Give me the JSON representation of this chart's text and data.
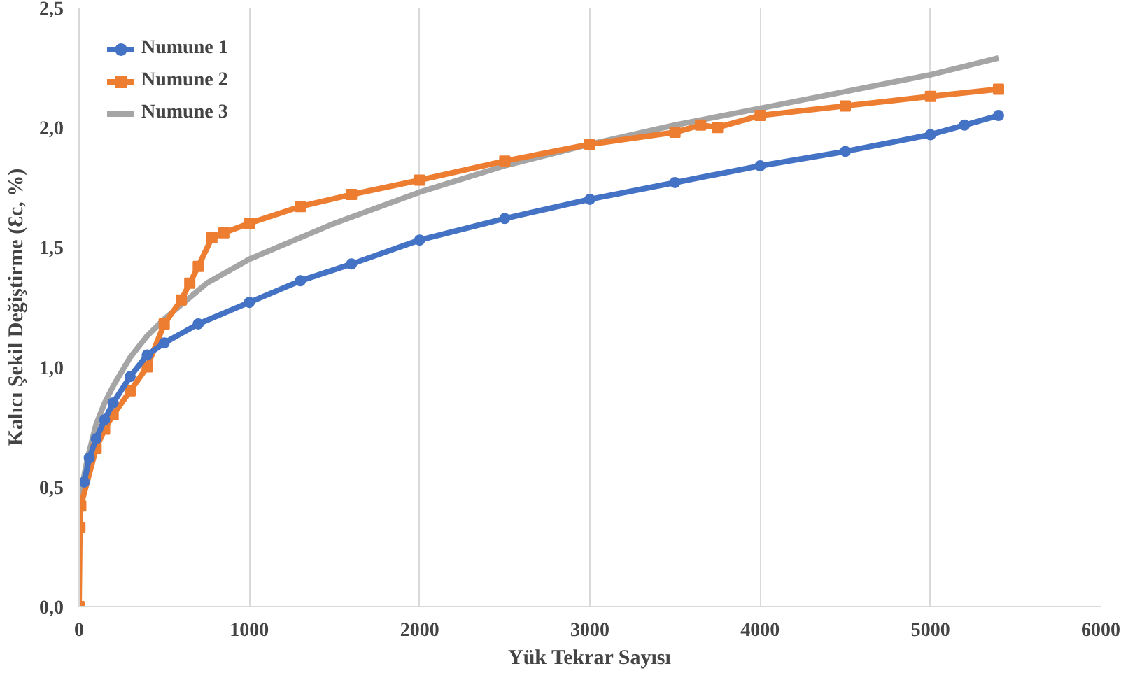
{
  "chart_data": {
    "type": "line",
    "xlabel": "Yük Tekrar Sayısı",
    "ylabel": "Kalıcı Şekil Değiştirme (Ɛc, %)",
    "xlim": [
      0,
      6000
    ],
    "xticks": [
      0,
      1000,
      2000,
      3000,
      4000,
      5000,
      6000
    ],
    "ylim": [
      0,
      2.5
    ],
    "yticks": [
      {
        "value": 0,
        "label": "0,0"
      },
      {
        "value": 0.5,
        "label": "0,5"
      },
      {
        "value": 1,
        "label": "1,0"
      },
      {
        "value": 1.5,
        "label": "1,5"
      },
      {
        "value": 2,
        "label": "2,0"
      },
      {
        "value": 2.5,
        "label": "2,5"
      }
    ],
    "grid": "x",
    "legend": "top left",
    "series": [
      {
        "name": "Numune 1",
        "color": "#4472c4",
        "type": "line",
        "marker": "circle",
        "x": [
          30,
          60,
          100,
          150,
          200,
          300,
          400,
          500,
          700,
          1000,
          1300,
          1600,
          2000,
          2500,
          3000,
          3500,
          4000,
          4500,
          5000,
          5200,
          5400
        ],
        "values": [
          0.52,
          0.62,
          0.7,
          0.78,
          0.85,
          0.96,
          1.05,
          1.1,
          1.18,
          1.27,
          1.36,
          1.43,
          1.53,
          1.62,
          1.7,
          1.77,
          1.84,
          1.9,
          1.97,
          2.01,
          2.05
        ]
      },
      {
        "name": "Numune 2",
        "color": "#ed7d31",
        "type": "line",
        "marker": "square",
        "x": [
          0,
          5,
          10,
          100,
          150,
          200,
          300,
          400,
          500,
          600,
          650,
          700,
          780,
          850,
          1000,
          1300,
          1600,
          2000,
          2500,
          3000,
          3500,
          3650,
          3750,
          4000,
          4500,
          5000,
          5400
        ],
        "values": [
          0,
          0.33,
          0.42,
          0.66,
          0.74,
          0.8,
          0.9,
          1.0,
          1.18,
          1.28,
          1.35,
          1.42,
          1.54,
          1.56,
          1.6,
          1.67,
          1.72,
          1.78,
          1.86,
          1.93,
          1.98,
          2.01,
          2.0,
          2.05,
          2.09,
          2.13,
          2.16
        ]
      },
      {
        "name": "Numune 3",
        "color": "#a5a5a5",
        "type": "line",
        "marker": "none",
        "x": [
          10,
          30,
          50,
          100,
          150,
          200,
          300,
          400,
          500,
          750,
          1000,
          1500,
          2000,
          2500,
          3000,
          3500,
          4000,
          4500,
          5000,
          5400
        ],
        "values": [
          0.45,
          0.55,
          0.62,
          0.76,
          0.85,
          0.92,
          1.04,
          1.13,
          1.2,
          1.35,
          1.45,
          1.6,
          1.73,
          1.84,
          1.93,
          2.01,
          2.08,
          2.15,
          2.22,
          2.29
        ]
      }
    ]
  }
}
